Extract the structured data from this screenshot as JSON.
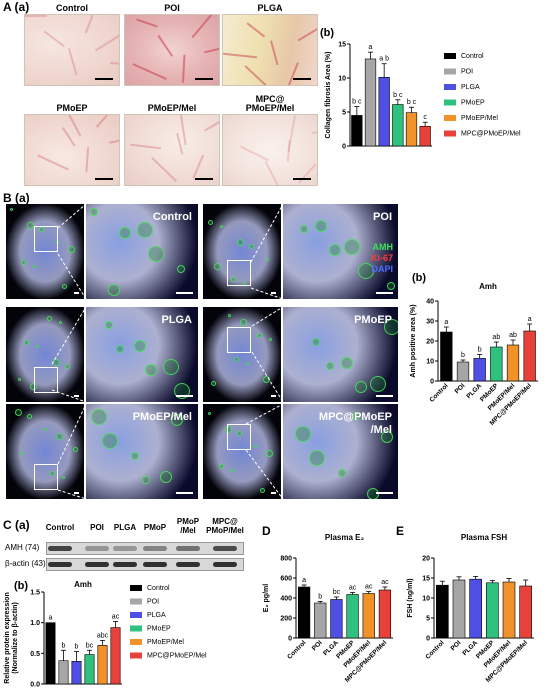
{
  "panel_A": {
    "label": "A (a)",
    "image_titles": [
      "Control",
      "POI",
      "PLGA",
      "PMoEP",
      "PMoEP/Mel",
      "MPC@\nPMoEP/Mel"
    ],
    "sub_b": "(b)"
  },
  "panel_B": {
    "label": "B (a)",
    "image_titles": [
      "Control",
      "POI",
      "PLGA",
      "PMoEP",
      "PMoEP/Mel",
      "MPC@PMoEP\n/Mel"
    ],
    "stain_labels": [
      "AMH",
      "Ki-67",
      "DAPI"
    ],
    "sub_b": "(b)"
  },
  "panel_C": {
    "label": "C (a)",
    "lane_labels": [
      "Control",
      "POI",
      "PLGA",
      "PMoP",
      "PMoP\n/Mel",
      "MPC@\nPMoP/Mel"
    ],
    "row_labels": [
      "AMH (74)",
      "β-actin (43)"
    ],
    "sub_b": "(b)"
  },
  "panel_D": {
    "label": "D"
  },
  "panel_E": {
    "label": "E"
  },
  "colors": {
    "Control": "#000000",
    "POI": "#a6a6a6",
    "PLGA": "#4f4fe6",
    "PMoEP": "#2ec27e",
    "PMoEP/Mel": "#f0912a",
    "MPC@PMoEP/Mel": "#e8413a"
  },
  "chart_data": [
    {
      "id": "A_b",
      "type": "bar",
      "title": "",
      "ylabel": "Collagen fibrosis Area (%)",
      "xlabel": "",
      "ylim": [
        0,
        15
      ],
      "yticks": [
        0,
        5,
        10,
        15
      ],
      "categories": [
        "Control",
        "POI",
        "PLGA",
        "PMoEP",
        "PMoEP/Mel",
        "MPC@PMoEP/Mel"
      ],
      "values": [
        4.5,
        12.8,
        10.1,
        6.1,
        4.9,
        2.9
      ],
      "errors": [
        1.3,
        1.0,
        2.0,
        0.7,
        0.8,
        0.6
      ],
      "letters": [
        "b c",
        "a",
        "a b",
        "b c",
        "b c",
        "c"
      ],
      "legend": [
        "Control",
        "POI",
        "PLGA",
        "PMoEP",
        "PMoEP/Mel",
        "MPC@PMoEP/Mel"
      ],
      "legend_position": "right"
    },
    {
      "id": "B_b",
      "type": "bar",
      "title": "Amh",
      "ylabel": "Amh positive area (%)",
      "xlabel": "",
      "ylim": [
        0,
        40
      ],
      "yticks": [
        0,
        10,
        20,
        30,
        40
      ],
      "categories": [
        "Control",
        "POI",
        "PLGA",
        "PMoEP",
        "PMoEP/Mel",
        "MPC@PMoEP/Mel"
      ],
      "values": [
        24.5,
        9.5,
        11.3,
        17.0,
        18.0,
        25.0
      ],
      "errors": [
        2.5,
        1.0,
        2.0,
        2.5,
        2.5,
        3.5
      ],
      "letters": [
        "a",
        "b",
        "b",
        "ab",
        "ab",
        "a"
      ]
    },
    {
      "id": "C_b",
      "type": "bar",
      "title": "Amh",
      "ylabel": "Relative protein expression\n(Normalize to β-actin)",
      "xlabel": "",
      "ylim": [
        0,
        1.5
      ],
      "yticks": [
        0.0,
        0.5,
        1.0,
        1.5
      ],
      "categories": [
        "Control",
        "POI",
        "PLGA",
        "PMoEP",
        "PMoEP/Mel",
        "MPC@PMoEP/Mel"
      ],
      "values": [
        1.0,
        0.38,
        0.37,
        0.48,
        0.63,
        0.92
      ],
      "errors": [
        0.0,
        0.17,
        0.16,
        0.07,
        0.08,
        0.1
      ],
      "letters": [
        "a",
        "b",
        "b",
        "bc",
        "abc",
        "ac"
      ],
      "legend": [
        "Control",
        "POI",
        "PLGA",
        "PMoEP",
        "PMoEP/Mel",
        "MPC@PMoEP/Mel"
      ],
      "legend_position": "right"
    },
    {
      "id": "D",
      "type": "bar",
      "title": "Plasma E₂",
      "ylabel": "E₂ pg/ml",
      "xlabel": "",
      "ylim": [
        0,
        800
      ],
      "yticks": [
        0,
        200,
        400,
        600,
        800
      ],
      "categories": [
        "Control",
        "POI",
        "PLGA",
        "PMoEP",
        "PMoEP/Mel",
        "MPC@PMoEP/Mel"
      ],
      "values": [
        510,
        350,
        385,
        435,
        445,
        480
      ],
      "errors": [
        20,
        15,
        25,
        20,
        20,
        30
      ],
      "letters": [
        "a",
        "b",
        "bc",
        "ac",
        "ac",
        "ac"
      ]
    },
    {
      "id": "E",
      "type": "bar",
      "title": "Plasma FSH",
      "ylabel": "FSH (ng/ml)",
      "xlabel": "",
      "ylim": [
        0,
        20
      ],
      "yticks": [
        0,
        5,
        10,
        15,
        20
      ],
      "categories": [
        "Control",
        "POI",
        "PLGA",
        "PMoEP",
        "PMoEP/Mel",
        "MPC@PMoEP/Mel"
      ],
      "values": [
        13.2,
        14.5,
        14.7,
        13.8,
        14.0,
        13.0
      ],
      "errors": [
        1.0,
        0.8,
        0.7,
        0.6,
        0.9,
        1.5
      ],
      "letters": []
    }
  ]
}
